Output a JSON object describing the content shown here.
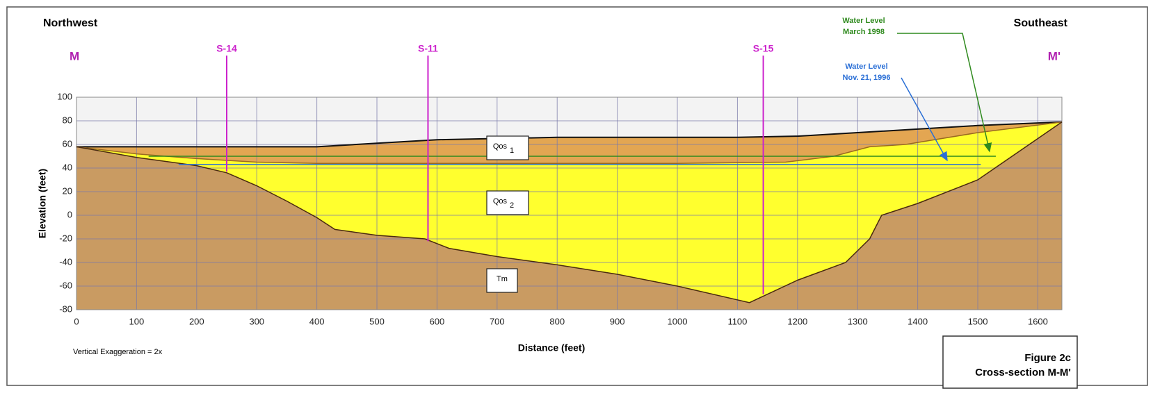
{
  "chart_data": {
    "type": "cross-section",
    "x_label": "Distance (feet)",
    "y_label": "Elevation (feet)",
    "xlim": [
      0,
      1640
    ],
    "ylim": [
      -80,
      100
    ],
    "xticks": [
      0,
      100,
      200,
      300,
      400,
      500,
      600,
      700,
      800,
      900,
      1000,
      1100,
      1200,
      1300,
      1400,
      1500,
      1600
    ],
    "yticks": [
      -80,
      -60,
      -40,
      -20,
      0,
      20,
      40,
      60,
      80,
      100
    ],
    "grid": true,
    "direction_left": "Northwest",
    "direction_right": "Southeast",
    "section_start": "M",
    "section_end": "M'",
    "note": "Vertical Exaggeration = 2x",
    "figure_number": "Figure 2c",
    "figure_caption": "Cross-section M-M'",
    "surfaces": [
      {
        "color": "#e3a652",
        "line_color": "#111111",
        "x": [
          0,
          200,
          400,
          500,
          600,
          800,
          1100,
          1200,
          1300,
          1400,
          1500,
          1640
        ],
        "values": [
          58,
          58,
          58,
          61,
          64,
          66,
          66,
          67,
          70,
          73,
          76,
          79
        ]
      },
      {
        "color": "#ffff2e",
        "line_color": "#9a6a20",
        "x": [
          0,
          100,
          200,
          300,
          400,
          700,
          1000,
          1180,
          1260,
          1320,
          1380,
          1500,
          1640
        ],
        "values": [
          58,
          52,
          48,
          45,
          44,
          44,
          44,
          45,
          50,
          58,
          60,
          70,
          79
        ]
      },
      {
        "color": "#c99b62",
        "line_color": "#4a2a10",
        "x": [
          0,
          100,
          200,
          250,
          300,
          350,
          400,
          430,
          500,
          580,
          620,
          700,
          800,
          900,
          1000,
          1120,
          1200,
          1280,
          1320,
          1340,
          1400,
          1500,
          1640
        ],
        "values": [
          58,
          49,
          42,
          36,
          25,
          12,
          -2,
          -12,
          -17,
          -20,
          -28,
          -35,
          -42,
          -50,
          -60,
          -74,
          -55,
          -40,
          -20,
          0,
          10,
          30,
          79
        ]
      }
    ],
    "layers": [
      {
        "label": "Qos",
        "subscript": "1"
      },
      {
        "label": "Qos",
        "subscript": "2"
      },
      {
        "label": "Tm"
      }
    ],
    "water_levels": [
      {
        "label": [
          "Water Level",
          "March 1998"
        ],
        "color": "#2f8a1e",
        "x": [
          120,
          1530
        ],
        "values": [
          50,
          50
        ]
      },
      {
        "label": [
          "Water Level",
          "Nov. 21, 1996"
        ],
        "color": "#2a6fd6",
        "x": [
          170,
          1505
        ],
        "values": [
          43,
          43
        ]
      }
    ],
    "wells": [
      {
        "label": "S-14",
        "x": 250,
        "bottom": 37
      },
      {
        "label": "S-11",
        "x": 585,
        "bottom": -22
      },
      {
        "label": "S-15",
        "x": 1143,
        "bottom": -67
      }
    ],
    "well_color": "#cc22cc"
  }
}
